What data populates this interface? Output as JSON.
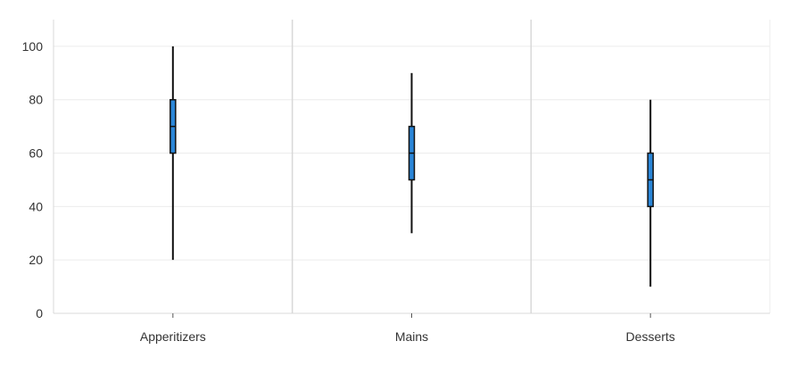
{
  "chart_data": {
    "type": "box",
    "categories": [
      "Apperitizers",
      "Mains",
      "Desserts"
    ],
    "boxes": [
      {
        "category": "Apperitizers",
        "min": 20,
        "q1": 60,
        "median": 70,
        "q3": 80,
        "max": 100
      },
      {
        "category": "Mains",
        "min": 30,
        "q1": 50,
        "median": 60,
        "q3": 70,
        "max": 90
      },
      {
        "category": "Desserts",
        "min": 10,
        "q1": 40,
        "median": 50,
        "q3": 60,
        "max": 80
      }
    ],
    "ylim": [
      0,
      110
    ],
    "yticks": [
      "0",
      "20",
      "40",
      "60",
      "80",
      "100"
    ],
    "grid": true,
    "colors": {
      "box_fill": "#2a86d8",
      "box_stroke": "#111111",
      "whisker": "#111111",
      "grid": "#ececec",
      "separator": "#d8d8d8"
    }
  }
}
